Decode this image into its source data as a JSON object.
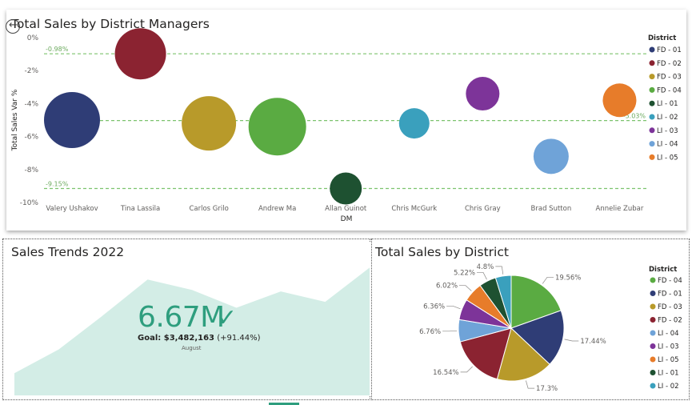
{
  "top_chart": {
    "title": "Total Sales by District Managers",
    "xlabel": "DM",
    "ylabel": "Total Sales Var %",
    "y_ticks": [
      "0%",
      "-2%",
      "-4%",
      "-6%",
      "-8%",
      "-10%"
    ],
    "ref_lines": [
      {
        "value": -0.98,
        "label": "-0.98%",
        "label_side": "left"
      },
      {
        "value": -5.03,
        "label": "-5.03%",
        "label_side": "right"
      },
      {
        "value": -9.15,
        "label": "-9.15%",
        "label_side": "left"
      }
    ],
    "legend_title": "District"
  },
  "trend_chart": {
    "title": "Sales Trends 2022",
    "kpi_value": "6.67M",
    "kpi_check": "✓",
    "goal_label": "Goal: $3,482,163",
    "goal_delta": "(+91.44%)",
    "period": "August"
  },
  "pie_chart": {
    "title": "Total Sales by District",
    "legend_title": "District"
  },
  "chart_data": [
    {
      "type": "scatter",
      "title": "Total Sales by District Managers",
      "xlabel": "DM",
      "ylabel": "Total Sales Var %",
      "ylim": [
        -10,
        0
      ],
      "legend": "right",
      "grid": false,
      "points": [
        {
          "manager": "Valery Ushakov",
          "district": "FD - 01",
          "y": -5.0,
          "size": 70,
          "color": "#2f3d76"
        },
        {
          "manager": "Tina Lassila",
          "district": "FD - 02",
          "y": -0.98,
          "size": 64,
          "color": "#8b2331"
        },
        {
          "manager": "Carlos Grilo",
          "district": "FD - 03",
          "y": -5.2,
          "size": 68,
          "color": "#b89a2a"
        },
        {
          "manager": "Andrew Ma",
          "district": "FD - 04",
          "y": -5.4,
          "size": 72,
          "color": "#5aab42"
        },
        {
          "manager": "Allan Guinot",
          "district": "LI - 01",
          "y": -9.15,
          "size": 40,
          "color": "#1e5131"
        },
        {
          "manager": "Chris McGurk",
          "district": "LI - 02",
          "y": -5.2,
          "size": 38,
          "color": "#3aa0bd"
        },
        {
          "manager": "Chris Gray",
          "district": "LI - 03",
          "y": -3.4,
          "size": 42,
          "color": "#7d3499"
        },
        {
          "manager": "Brad Sutton",
          "district": "LI - 04",
          "y": -7.2,
          "size": 44,
          "color": "#6fa3d8"
        },
        {
          "manager": "Annelie Zubar",
          "district": "LI - 05",
          "y": -3.8,
          "size": 42,
          "color": "#e77c2a"
        }
      ]
    },
    {
      "type": "area",
      "title": "Sales Trends 2022",
      "series": [
        {
          "values": [
            1.5,
            3.1,
            5.4,
            7.8,
            7.1,
            5.9,
            7.0,
            6.3,
            8.6
          ]
        }
      ],
      "ylim": [
        0,
        9
      ],
      "axes_visible": false
    },
    {
      "type": "pie",
      "title": "Total Sales by District",
      "legend": "right",
      "slices": [
        {
          "label": "FD - 04",
          "value": 19.56,
          "text": "19.56%",
          "color": "#5aab42"
        },
        {
          "label": "FD - 01",
          "value": 17.44,
          "text": "17.44%",
          "color": "#2f3d76"
        },
        {
          "label": "FD - 03",
          "value": 17.3,
          "text": "17.3%",
          "color": "#b89a2a"
        },
        {
          "label": "FD - 02",
          "value": 16.54,
          "text": "16.54%",
          "color": "#8b2331"
        },
        {
          "label": "LI - 04",
          "value": 6.76,
          "text": "6.76%",
          "color": "#6fa3d8"
        },
        {
          "label": "LI - 03",
          "value": 6.36,
          "text": "6.36%",
          "color": "#7d3499"
        },
        {
          "label": "LI - 05",
          "value": 6.02,
          "text": "6.02%",
          "color": "#e77c2a"
        },
        {
          "label": "LI - 01",
          "value": 5.22,
          "text": "5.22%",
          "color": "#1e5131"
        },
        {
          "label": "LI - 02",
          "value": 4.8,
          "text": "4.8%",
          "color": "#3aa0bd"
        }
      ]
    }
  ]
}
